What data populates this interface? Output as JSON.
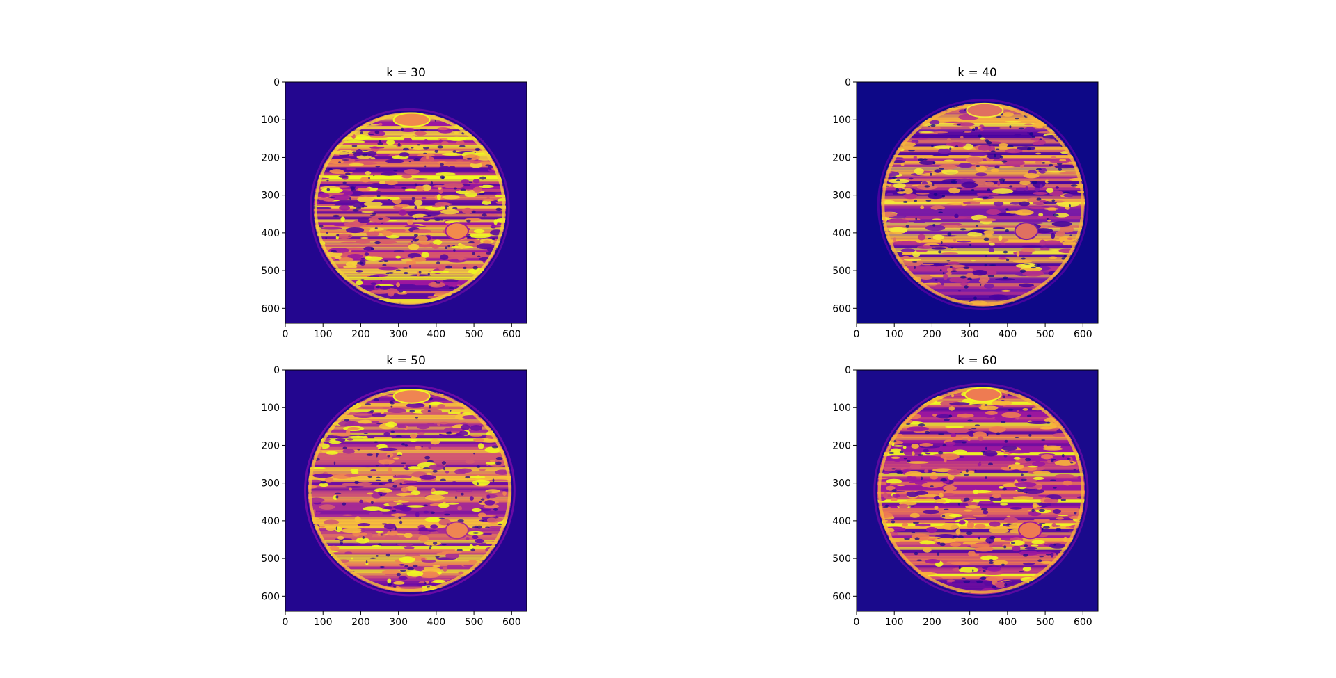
{
  "figure": {
    "background": "#ffffff",
    "colormap": "plasma",
    "colormap_colors": [
      "#0d0887",
      "#46039f",
      "#7201a8",
      "#9c179e",
      "#bd3786",
      "#d8576b",
      "#ed7953",
      "#fb9f3a",
      "#fdca26",
      "#f0f921"
    ]
  },
  "chart_data": [
    {
      "type": "heatmap",
      "title": "k = 30",
      "xlabel": "",
      "ylabel": "",
      "xlim": [
        0,
        640
      ],
      "ylim": [
        640,
        0
      ],
      "xticks": [
        "0",
        "100",
        "200",
        "300",
        "400",
        "500",
        "600"
      ],
      "yticks": [
        "0",
        "100",
        "200",
        "300",
        "400",
        "500",
        "600"
      ],
      "background_color": "#23068f",
      "disk_center": [
        330,
        335
      ],
      "disk_radius": 255,
      "band_colors": [
        "#5a0aa0",
        "#9c179e",
        "#d8576b",
        "#f28a4c",
        "#f5d23a",
        "#f0f921"
      ],
      "spot_center": [
        455,
        395
      ]
    },
    {
      "type": "heatmap",
      "title": "k = 40",
      "xlabel": "",
      "ylabel": "",
      "xlim": [
        0,
        640
      ],
      "ylim": [
        640,
        0
      ],
      "xticks": [
        "0",
        "100",
        "200",
        "300",
        "400",
        "500",
        "600"
      ],
      "yticks": [
        "0",
        "100",
        "200",
        "300",
        "400",
        "500",
        "600"
      ],
      "background_color": "#0d0887",
      "disk_center": [
        335,
        325
      ],
      "disk_radius": 270,
      "band_colors": [
        "#46039f",
        "#7a1ba6",
        "#b7318a",
        "#e07060",
        "#f8b43c",
        "#f4e83a"
      ],
      "spot_center": [
        450,
        395
      ]
    },
    {
      "type": "heatmap",
      "title": "k = 50",
      "xlabel": "",
      "ylabel": "",
      "xlim": [
        0,
        640
      ],
      "ylim": [
        640,
        0
      ],
      "xticks": [
        "0",
        "100",
        "200",
        "300",
        "400",
        "500",
        "600"
      ],
      "yticks": [
        "0",
        "100",
        "200",
        "300",
        "400",
        "500",
        "600"
      ],
      "background_color": "#23068f",
      "disk_center": [
        330,
        320
      ],
      "disk_radius": 270,
      "band_colors": [
        "#6a0aa5",
        "#a52a95",
        "#d35a70",
        "#ef8552",
        "#f8c13a",
        "#f0f921"
      ],
      "spot_center": [
        455,
        425
      ]
    },
    {
      "type": "heatmap",
      "title": "k = 60",
      "xlabel": "",
      "ylabel": "",
      "xlim": [
        0,
        640
      ],
      "ylim": [
        640,
        0
      ],
      "xticks": [
        "0",
        "100",
        "200",
        "300",
        "400",
        "500",
        "600"
      ],
      "yticks": [
        "0",
        "100",
        "200",
        "300",
        "400",
        "500",
        "600"
      ],
      "background_color": "#1a0a8c",
      "disk_center": [
        330,
        320
      ],
      "disk_radius": 275,
      "band_colors": [
        "#5a0aa0",
        "#9c179e",
        "#cf4c74",
        "#ee7b52",
        "#f7b43a",
        "#f0f921"
      ],
      "spot_center": [
        460,
        425
      ]
    }
  ]
}
